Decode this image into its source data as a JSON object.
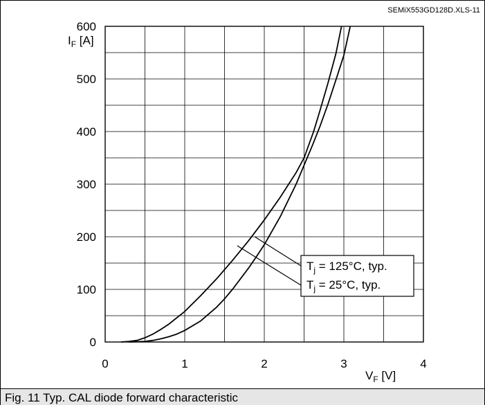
{
  "file_label": "SEMiX553GD128D.XLS-11",
  "caption": "Fig. 11 Typ. CAL diode forward characteristic",
  "chart_data": {
    "type": "line",
    "title": "",
    "xlabel": {
      "main": "V",
      "sub": "F",
      "unit": " [V]"
    },
    "ylabel": {
      "main": "I",
      "sub": "F",
      "unit": " [A]"
    },
    "xlim": [
      0,
      4
    ],
    "ylim": [
      0,
      600
    ],
    "x_ticks": [
      0,
      1,
      2,
      3,
      4
    ],
    "y_ticks": [
      0,
      100,
      200,
      300,
      400,
      500,
      600
    ],
    "grid": true,
    "series": [
      {
        "name": "T_j = 125°C, typ.",
        "label_parts": {
          "main": "T",
          "sub": "j",
          "rest": " = 125°C, typ."
        },
        "points": [
          [
            0.2,
            0
          ],
          [
            0.3,
            1
          ],
          [
            0.4,
            3
          ],
          [
            0.5,
            8
          ],
          [
            0.6,
            15
          ],
          [
            0.7,
            24
          ],
          [
            0.8,
            34
          ],
          [
            1.0,
            58
          ],
          [
            1.2,
            88
          ],
          [
            1.4,
            120
          ],
          [
            1.6,
            155
          ],
          [
            1.8,
            192
          ],
          [
            2.0,
            232
          ],
          [
            2.2,
            275
          ],
          [
            2.4,
            322
          ],
          [
            2.5,
            350
          ],
          [
            2.62,
            400
          ],
          [
            2.7,
            440
          ],
          [
            2.8,
            492
          ],
          [
            2.9,
            548
          ],
          [
            2.97,
            600
          ]
        ]
      },
      {
        "name": "T_j = 25°C, typ.",
        "label_parts": {
          "main": "T",
          "sub": "j",
          "rest": " = 25°C, typ."
        },
        "points": [
          [
            0.3,
            0
          ],
          [
            0.5,
            1
          ],
          [
            0.6,
            3
          ],
          [
            0.7,
            6
          ],
          [
            0.8,
            10
          ],
          [
            0.9,
            15
          ],
          [
            1.0,
            22
          ],
          [
            1.2,
            40
          ],
          [
            1.4,
            66
          ],
          [
            1.5,
            82
          ],
          [
            1.6,
            100
          ],
          [
            1.8,
            140
          ],
          [
            1.9,
            162
          ],
          [
            2.0,
            185
          ],
          [
            2.2,
            238
          ],
          [
            2.4,
            300
          ],
          [
            2.6,
            372
          ],
          [
            2.7,
            410
          ],
          [
            2.8,
            452
          ],
          [
            2.9,
            498
          ],
          [
            3.0,
            545
          ],
          [
            3.08,
            600
          ]
        ]
      }
    ]
  }
}
